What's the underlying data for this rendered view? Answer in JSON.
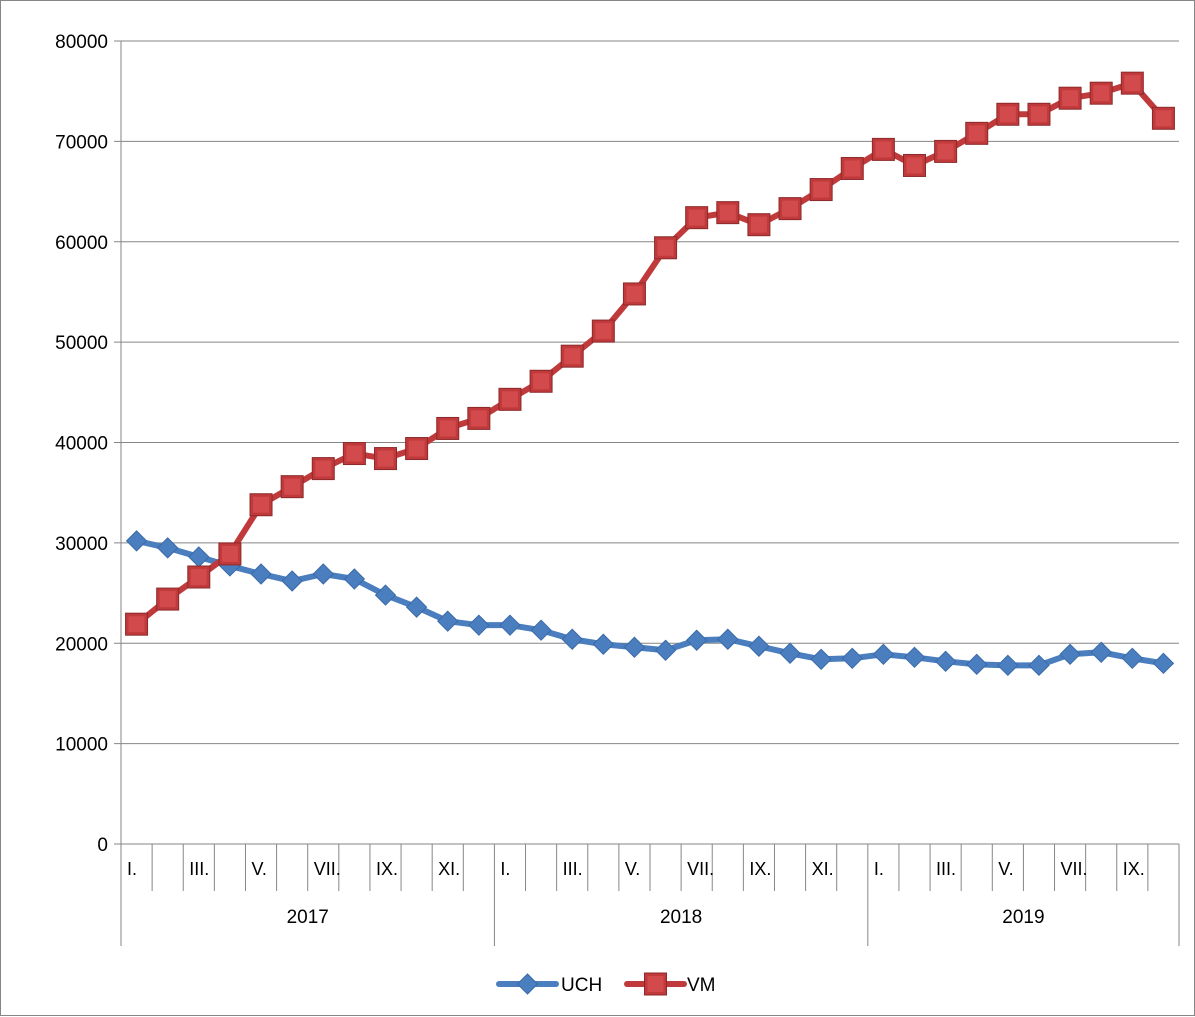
{
  "chart_data": {
    "type": "line",
    "title": "",
    "xlabel": "",
    "ylabel": "",
    "ylim": [
      0,
      80000
    ],
    "yticks": [
      0,
      10000,
      20000,
      30000,
      40000,
      50000,
      60000,
      70000,
      80000
    ],
    "grid": true,
    "legend": "bottom",
    "years": [
      "2017",
      "2018",
      "2019"
    ],
    "months_per_year": [
      12,
      12,
      10
    ],
    "category_labels": [
      "I.",
      "",
      "III.",
      "",
      "V.",
      "",
      "VII.",
      "",
      "IX.",
      "",
      "XI.",
      "",
      "I.",
      "",
      "III.",
      "",
      "V.",
      "",
      "VII.",
      "",
      "IX.",
      "",
      "XI.",
      "",
      "I.",
      "",
      "III.",
      "",
      "V.",
      "",
      "VII.",
      "",
      "IX.",
      ""
    ],
    "series": [
      {
        "name": "UCH",
        "color": "#4a7ebf",
        "marker": "diamond",
        "values": [
          30200,
          29500,
          28600,
          27700,
          26900,
          26200,
          26900,
          26400,
          24800,
          23600,
          22200,
          21800,
          21800,
          21300,
          20400,
          19900,
          19600,
          19300,
          20300,
          20400,
          19700,
          19000,
          18400,
          18500,
          18900,
          18600,
          18200,
          17900,
          17800,
          17800,
          18900,
          19100,
          18500,
          18000
        ]
      },
      {
        "name": "VM",
        "color": "#c0393b",
        "marker": "square",
        "values": [
          21900,
          24400,
          26600,
          28900,
          33800,
          35600,
          37400,
          38900,
          38400,
          39400,
          41400,
          42400,
          44300,
          46100,
          48600,
          51100,
          54800,
          59400,
          62400,
          62900,
          61700,
          63300,
          65200,
          67300,
          69200,
          67600,
          69000,
          70800,
          72700,
          72700,
          74300,
          74800,
          75800,
          72300
        ]
      }
    ]
  }
}
